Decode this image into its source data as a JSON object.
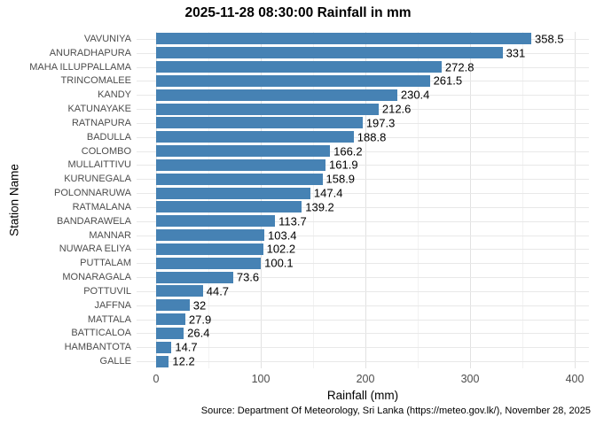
{
  "chart_data": {
    "type": "bar",
    "orientation": "horizontal",
    "title": "2025-11-28 08:30:00 Rainfall in mm",
    "xlabel": "Rainfall (mm)",
    "ylabel": "Station Name",
    "caption": "Source: Department Of Meteorology, Sri Lanka (https://meteo.gov.lk/), November 28, 2025",
    "categories": [
      "VAVUNIYA",
      "ANURADHAPURA",
      "MAHA ILLUPPALLAMA",
      "TRINCOMALEE",
      "KANDY",
      "KATUNAYAKE",
      "RATNAPURA",
      "BADULLA",
      "COLOMBO",
      "MULLAITTIVU",
      "KURUNEGALA",
      "POLONNARUWA",
      "RATMALANA",
      "BANDARAWELA",
      "MANNAR",
      "NUWARA ELIYA",
      "PUTTALAM",
      "MONARAGALA",
      "POTTUVIL",
      "JAFFNA",
      "MATTALA",
      "BATTICALOA",
      "HAMBANTOTA",
      "GALLE"
    ],
    "values": [
      358.5,
      331,
      272.8,
      261.5,
      230.4,
      212.6,
      197.3,
      188.8,
      166.2,
      161.9,
      158.9,
      147.4,
      139.2,
      113.7,
      103.4,
      102.2,
      100.1,
      73.6,
      44.7,
      32,
      27.9,
      26.4,
      14.7,
      12.2
    ],
    "xlim": [
      0,
      400
    ],
    "x_major_ticks": [
      0,
      100,
      200,
      300,
      400
    ],
    "x_minor_ticks": [
      50,
      150,
      250,
      350
    ],
    "grid": true,
    "legend": "none",
    "colors": {
      "bar": "#4682B4",
      "major_grid": "#e2e2e2",
      "minor_grid": "#f2f2f2",
      "row_grid": "#e8e8e8",
      "axis_text": "#4d4d4d",
      "value_text": "#000000"
    }
  }
}
